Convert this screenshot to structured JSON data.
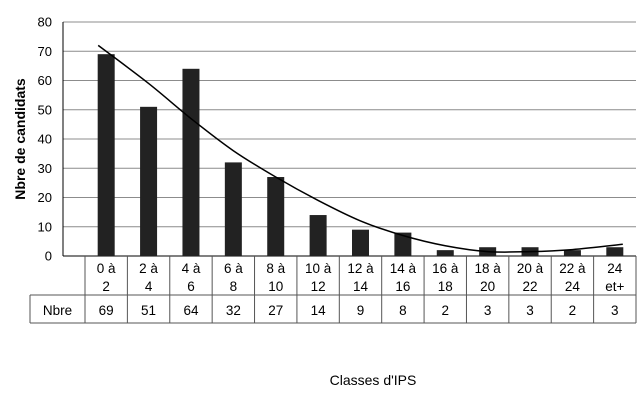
{
  "chart_data": {
    "type": "bar",
    "categories": [
      [
        "0 à",
        "2"
      ],
      [
        "2 à",
        "4"
      ],
      [
        "4 à",
        "6"
      ],
      [
        "6 à",
        "8"
      ],
      [
        "8 à",
        "10"
      ],
      [
        "10 à",
        "12"
      ],
      [
        "12 à",
        "14"
      ],
      [
        "14 à",
        "16"
      ],
      [
        "16 à",
        "18"
      ],
      [
        "18 à",
        "20"
      ],
      [
        "20 à",
        "22"
      ],
      [
        "22 à",
        "24"
      ],
      [
        "24",
        "et+"
      ]
    ],
    "series": [
      {
        "name": "Nbre",
        "values": [
          69,
          51,
          64,
          32,
          27,
          14,
          9,
          8,
          2,
          3,
          3,
          2,
          3
        ]
      }
    ],
    "trendline": {
      "type": "polynomial",
      "values": [
        72,
        59,
        47,
        36,
        27,
        19,
        12,
        7,
        3.5,
        1.5,
        1.5,
        2.2,
        4
      ]
    },
    "ylabel": "Nbre de candidats",
    "xlabel": "Classes d'IPS",
    "ylim": [
      0,
      80
    ],
    "yticks": [
      0,
      10,
      20,
      30,
      40,
      50,
      60,
      70,
      80
    ],
    "grid": true,
    "data_table": true,
    "colors": {
      "bar": "#222222",
      "grid": "#8c8c8c",
      "axis": "#000000",
      "table": "#555555"
    }
  }
}
